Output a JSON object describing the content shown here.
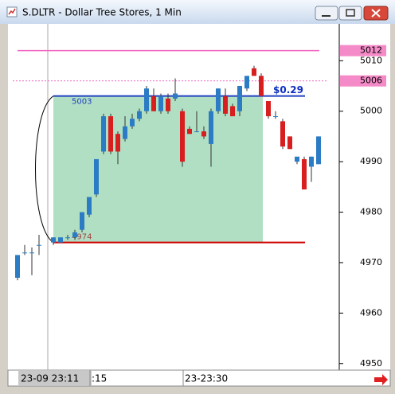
{
  "chart_data": {
    "type": "candlestick",
    "title": "S.DLTR - Dollar Tree Stores, 1 Min",
    "cursor_label": "23-09 23:11",
    "categories": [
      null,
      null,
      null,
      null,
      null,
      null,
      null,
      null,
      null,
      null,
      null,
      ":15",
      null,
      null,
      null,
      null,
      null,
      null,
      null,
      null,
      null,
      null,
      null,
      null,
      "23-23:30",
      null,
      null,
      null,
      null,
      null,
      null,
      null,
      null,
      null,
      null,
      null,
      null,
      null,
      null,
      null,
      null,
      null,
      null
    ],
    "open": [
      4967,
      4972,
      4972,
      4973.5,
      null,
      4974,
      4974,
      4975,
      4975,
      4976.5,
      4979.5,
      4983.5,
      4992,
      4999,
      4995.5,
      4994.5,
      4997,
      4998.5,
      5000,
      5003,
      5000,
      5002.5,
      5002.5,
      5000,
      4996.5,
      4996,
      4996,
      4993.5,
      5000,
      5003,
      5001,
      5000,
      5004.5,
      5008.5,
      5007,
      5002,
      4999,
      4998,
      4995,
      4990,
      4990.5,
      4989,
      4989.5
    ],
    "high": [
      4971.5,
      4973.5,
      4973,
      4975.5,
      null,
      4975,
      4975,
      4975.5,
      4976.5,
      4980,
      4983,
      4990.5,
      4999.5,
      4999.5,
      4996,
      4999,
      4999.5,
      5000.5,
      5005,
      5004.5,
      5003.5,
      5003.5,
      5006.5,
      5000.5,
      4997,
      5000,
      4997,
      5000.5,
      5004.5,
      5004.5,
      5001.5,
      5005,
      5007,
      5009,
      5007.5,
      5002,
      5000,
      4998.5,
      4995,
      4990.5,
      4991,
      4991,
      4995
    ],
    "low": [
      4966.5,
      4971.5,
      4967.5,
      4971.5,
      null,
      4973.5,
      4974,
      4974.5,
      4974.5,
      4976,
      4979,
      4983,
      4991.5,
      4991.5,
      4989.5,
      4994,
      4996.5,
      4998,
      4999.5,
      5000,
      4999.5,
      4999.5,
      5002,
      4989,
      4995.5,
      4996,
      4994.5,
      4989,
      4999.5,
      4999,
      4999,
      4999,
      5004,
      5007,
      5003,
      4998.5,
      4998.5,
      4992.5,
      4992.5,
      4989.5,
      4984.5,
      4986,
      4989.5
    ],
    "close": [
      4971.5,
      4972,
      4972,
      4973.5,
      null,
      4975,
      4975,
      4975,
      4976,
      4980,
      4983,
      4990.5,
      4999,
      4992,
      4992,
      4997,
      4998.5,
      5000,
      5004.5,
      5000,
      5003,
      5000,
      5003.5,
      4990,
      4995.5,
      4996,
      4995,
      5000,
      5004.5,
      4999.5,
      4999,
      5005,
      5007,
      5007,
      5003,
      4999,
      4999,
      4993,
      4992.5,
      4991,
      4984.5,
      4991,
      4995
    ],
    "up_color": "#2b7cc4",
    "down_color": "#d81e1e",
    "ylim": [
      4948.7,
      5017.3
    ],
    "yticks": [
      4950,
      4960,
      4970,
      4980,
      4990,
      5000,
      5010
    ],
    "levels": {
      "pink": 5012,
      "pink_dashed": 5006,
      "blue": 5003,
      "red": 4974
    },
    "range_label": "$0.29"
  }
}
